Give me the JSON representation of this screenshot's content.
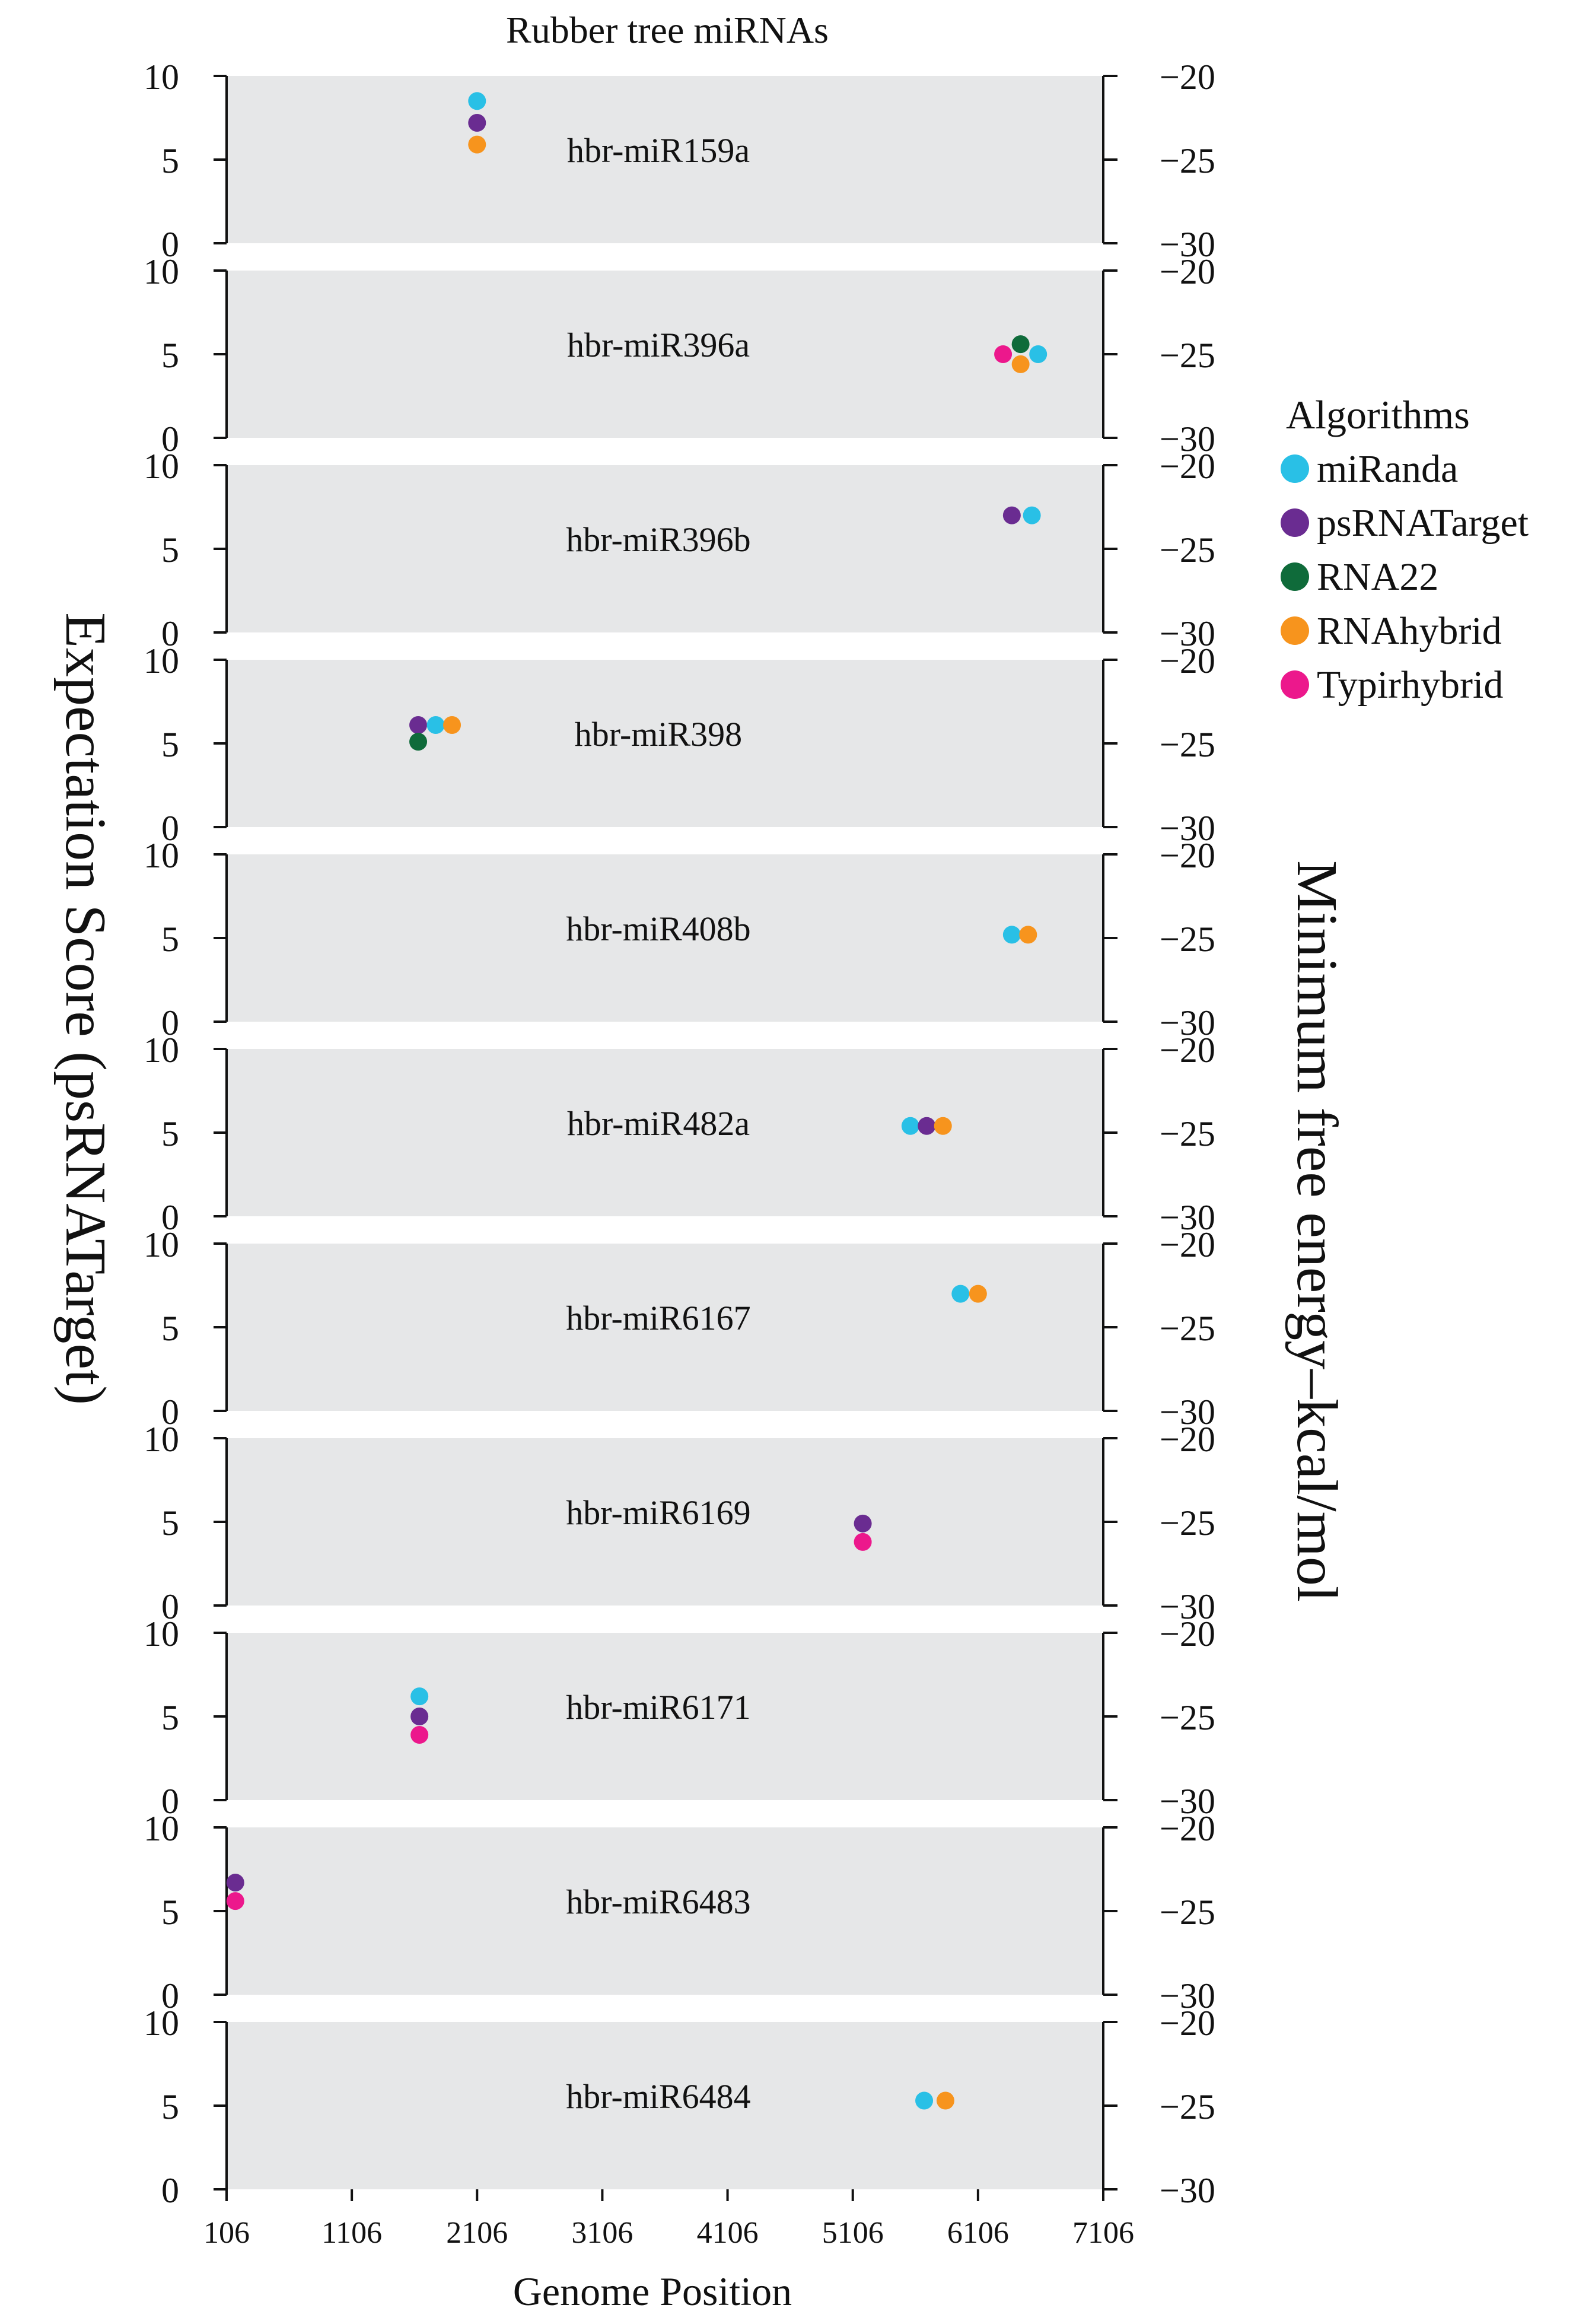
{
  "chart_data": {
    "type": "scatter",
    "title": "Rubber tree miRNAs",
    "xlabel": "Genome Position",
    "ylabel_left": "Expectation Score (psRNATarget)",
    "ylabel_right": "Minimum free energy–kcal/mol",
    "xlim": [
      106,
      7106
    ],
    "x_ticks": [
      "106",
      "1106",
      "2106",
      "3106",
      "4106",
      "5106",
      "6106",
      "7106"
    ],
    "x_tick_values": [
      106,
      1106,
      2106,
      3106,
      4106,
      5106,
      6106,
      7106
    ],
    "left_ylim": [
      0,
      10
    ],
    "left_ticks": [
      "0",
      "5",
      "10"
    ],
    "left_tick_values": [
      0,
      5,
      10
    ],
    "right_ylim": [
      -30,
      -20
    ],
    "right_ticks": [
      "−30",
      "−25",
      "−20"
    ],
    "right_tick_values": [
      -30,
      -25,
      -20
    ],
    "legend": {
      "title": "Algorithms",
      "position": "right",
      "items": [
        {
          "name": "miRanda",
          "color": "#29c0e6"
        },
        {
          "name": "psRNATarget",
          "color": "#6a2c91"
        },
        {
          "name": "RNA22",
          "color": "#0f6b3a"
        },
        {
          "name": "RNAhybrid",
          "color": "#f7941d"
        },
        {
          "name": "Typirhybrid",
          "color": "#ec188c"
        }
      ]
    },
    "panels": [
      {
        "name": "hbr-miR159a",
        "points": [
          {
            "x": 2106,
            "y": 8.5,
            "alg": "miRanda"
          },
          {
            "x": 2106,
            "y": 7.2,
            "alg": "psRNATarget"
          },
          {
            "x": 2106,
            "y": 5.9,
            "alg": "RNAhybrid"
          }
        ]
      },
      {
        "name": "hbr-miR396a",
        "points": [
          {
            "x": 6306,
            "y": 5.0,
            "alg": "Typirhybrid"
          },
          {
            "x": 6446,
            "y": 5.6,
            "alg": "RNA22"
          },
          {
            "x": 6446,
            "y": 4.4,
            "alg": "RNAhybrid"
          },
          {
            "x": 6586,
            "y": 5.0,
            "alg": "miRanda"
          }
        ]
      },
      {
        "name": "hbr-miR396b",
        "points": [
          {
            "x": 6376,
            "y": 7.0,
            "alg": "psRNATarget"
          },
          {
            "x": 6536,
            "y": 7.0,
            "alg": "miRanda"
          }
        ]
      },
      {
        "name": "hbr-miR398",
        "points": [
          {
            "x": 1636,
            "y": 6.1,
            "alg": "psRNATarget"
          },
          {
            "x": 1776,
            "y": 6.1,
            "alg": "miRanda"
          },
          {
            "x": 1906,
            "y": 6.1,
            "alg": "RNAhybrid"
          },
          {
            "x": 1636,
            "y": 5.1,
            "alg": "RNA22"
          }
        ]
      },
      {
        "name": "hbr-miR408b",
        "points": [
          {
            "x": 6376,
            "y": 5.2,
            "alg": "miRanda"
          },
          {
            "x": 6506,
            "y": 5.2,
            "alg": "RNAhybrid"
          }
        ]
      },
      {
        "name": "hbr-miR482a",
        "points": [
          {
            "x": 5566,
            "y": 5.4,
            "alg": "miRanda"
          },
          {
            "x": 5696,
            "y": 5.4,
            "alg": "psRNATarget"
          },
          {
            "x": 5826,
            "y": 5.4,
            "alg": "RNAhybrid"
          }
        ]
      },
      {
        "name": "hbr-miR6167",
        "points": [
          {
            "x": 5966,
            "y": 7.0,
            "alg": "miRanda"
          },
          {
            "x": 6106,
            "y": 7.0,
            "alg": "RNAhybrid"
          }
        ]
      },
      {
        "name": "hbr-miR6169",
        "points": [
          {
            "x": 5186,
            "y": 4.9,
            "alg": "psRNATarget"
          },
          {
            "x": 5186,
            "y": 3.8,
            "alg": "Typirhybrid"
          }
        ]
      },
      {
        "name": "hbr-miR6171",
        "points": [
          {
            "x": 1646,
            "y": 6.2,
            "alg": "miRanda"
          },
          {
            "x": 1646,
            "y": 5.0,
            "alg": "psRNATarget"
          },
          {
            "x": 1646,
            "y": 3.9,
            "alg": "Typirhybrid"
          }
        ]
      },
      {
        "name": "hbr-miR6483",
        "points": [
          {
            "x": 176,
            "y": 6.7,
            "alg": "psRNATarget"
          },
          {
            "x": 176,
            "y": 5.6,
            "alg": "Typirhybrid"
          }
        ]
      },
      {
        "name": "hbr-miR6484",
        "points": [
          {
            "x": 5676,
            "y": 5.3,
            "alg": "miRanda"
          },
          {
            "x": 5846,
            "y": 5.3,
            "alg": "RNAhybrid"
          }
        ]
      }
    ]
  }
}
